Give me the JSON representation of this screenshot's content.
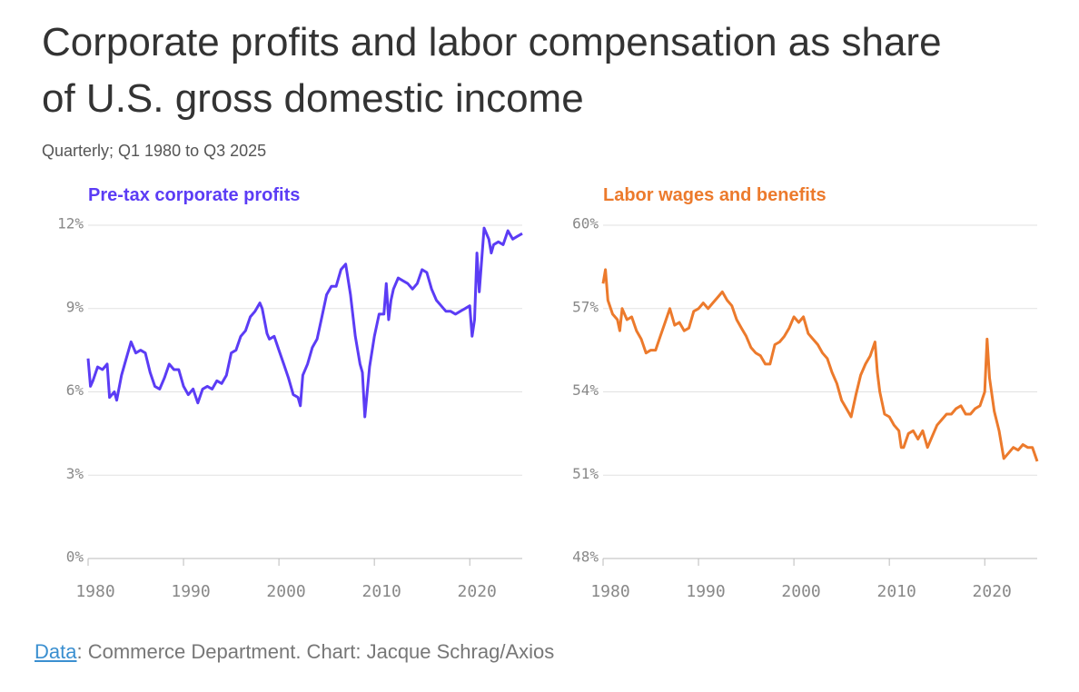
{
  "title": "Corporate profits and labor compensation as share of U.S. gross domestic income",
  "subtitle": "Quarterly; Q1 1980 to Q3 2025",
  "source": {
    "link": "Data",
    "text": ": Commerce Department. Chart: Jacque Schrag/Axios"
  },
  "chart_data": [
    {
      "type": "line",
      "grid": true,
      "xlim": [
        1980,
        2025.5
      ],
      "xticks": [
        1980,
        1990,
        2000,
        2010,
        2020
      ],
      "ylim": [
        0,
        12
      ],
      "yticks": [
        {
          "value": 0,
          "label": "0%"
        },
        {
          "value": 3,
          "label": "3%"
        },
        {
          "value": 6,
          "label": "6%"
        },
        {
          "value": 9,
          "label": "9%"
        },
        {
          "value": 12,
          "label": "12%"
        }
      ],
      "x": [
        1980,
        1980.25,
        1980.5,
        1981,
        1981.5,
        1982,
        1982.25,
        1982.75,
        1983,
        1983.5,
        1984,
        1984.5,
        1985,
        1985.5,
        1986,
        1986.5,
        1987,
        1987.5,
        1988,
        1988.5,
        1989,
        1989.5,
        1990,
        1990.5,
        1991,
        1991.5,
        1992,
        1992.5,
        1993,
        1993.5,
        1994,
        1994.5,
        1995,
        1995.5,
        1996,
        1996.5,
        1997,
        1997.5,
        1998,
        1998.25,
        1998.75,
        1999,
        1999.5,
        2000,
        2000.5,
        2001,
        2001.5,
        2002,
        2002.25,
        2002.5,
        2003,
        2003.5,
        2004,
        2004.5,
        2005,
        2005.5,
        2006,
        2006.5,
        2007,
        2007.5,
        2008,
        2008.5,
        2008.75,
        2009,
        2009.5,
        2010,
        2010.5,
        2011,
        2011.25,
        2011.5,
        2011.75,
        2012,
        2012.5,
        2013,
        2013.5,
        2014,
        2014.5,
        2015,
        2015.5,
        2016,
        2016.5,
        2017,
        2017.5,
        2018,
        2018.5,
        2019,
        2019.5,
        2020,
        2020.25,
        2020.5,
        2020.75,
        2021,
        2021.5,
        2022,
        2022.25,
        2022.5,
        2023,
        2023.5,
        2024,
        2024.5,
        2025,
        2025.5
      ],
      "series": [
        {
          "name": "Pre-tax corporate profits",
          "color": "#5b3cf5",
          "values": [
            7.2,
            6.2,
            6.4,
            6.9,
            6.8,
            7.0,
            5.8,
            6.0,
            5.7,
            6.6,
            7.2,
            7.8,
            7.4,
            7.5,
            7.4,
            6.7,
            6.2,
            6.1,
            6.5,
            7.0,
            6.8,
            6.8,
            6.2,
            5.9,
            6.1,
            5.6,
            6.1,
            6.2,
            6.1,
            6.4,
            6.3,
            6.6,
            7.4,
            7.5,
            8.0,
            8.2,
            8.7,
            8.9,
            9.2,
            9.0,
            8.1,
            7.9,
            8.0,
            7.5,
            7.0,
            6.5,
            5.9,
            5.8,
            5.5,
            6.6,
            7.0,
            7.6,
            7.9,
            8.7,
            9.5,
            9.8,
            9.8,
            10.4,
            10.6,
            9.5,
            8.0,
            7.0,
            6.7,
            5.1,
            6.9,
            8.0,
            8.8,
            8.8,
            9.9,
            8.6,
            9.3,
            9.7,
            10.1,
            10.0,
            9.9,
            9.7,
            9.9,
            10.4,
            10.3,
            9.7,
            9.3,
            9.1,
            8.9,
            8.9,
            8.8,
            8.9,
            9.0,
            9.1,
            8.0,
            8.6,
            11.0,
            9.6,
            11.9,
            11.5,
            11.0,
            11.3,
            11.4,
            11.3,
            11.8,
            11.5,
            11.6,
            11.7
          ]
        }
      ]
    },
    {
      "type": "line",
      "grid": true,
      "xlim": [
        1980,
        2025.5
      ],
      "xticks": [
        1980,
        1990,
        2000,
        2010,
        2020
      ],
      "ylim": [
        48,
        60
      ],
      "yticks": [
        {
          "value": 48,
          "label": "48%"
        },
        {
          "value": 51,
          "label": "51%"
        },
        {
          "value": 54,
          "label": "54%"
        },
        {
          "value": 57,
          "label": "57%"
        },
        {
          "value": 60,
          "label": "60%"
        }
      ],
      "x": [
        1980,
        1980.25,
        1980.5,
        1981,
        1981.5,
        1981.75,
        1982,
        1982.5,
        1983,
        1983.5,
        1984,
        1984.5,
        1985,
        1985.5,
        1986,
        1986.5,
        1987,
        1987.5,
        1988,
        1988.5,
        1989,
        1989.5,
        1990,
        1990.5,
        1991,
        1991.5,
        1992,
        1992.5,
        1993,
        1993.5,
        1994,
        1994.5,
        1995,
        1995.5,
        1996,
        1996.5,
        1997,
        1997.5,
        1998,
        1998.5,
        1999,
        1999.5,
        2000,
        2000.5,
        2001,
        2001.5,
        2002,
        2002.5,
        2003,
        2003.5,
        2004,
        2004.5,
        2005,
        2005.5,
        2006,
        2006.5,
        2007,
        2007.5,
        2008,
        2008.5,
        2008.75,
        2009,
        2009.5,
        2010,
        2010.5,
        2011,
        2011.25,
        2011.5,
        2012,
        2012.5,
        2013,
        2013.5,
        2014,
        2014.5,
        2015,
        2015.5,
        2016,
        2016.5,
        2017,
        2017.5,
        2018,
        2018.5,
        2019,
        2019.5,
        2020,
        2020.25,
        2020.5,
        2021,
        2021.5,
        2022,
        2022.5,
        2023,
        2023.5,
        2024,
        2024.5,
        2025,
        2025.5
      ],
      "series": [
        {
          "name": "Labor wages and benefits",
          "color": "#ec7a2c",
          "values": [
            57.9,
            58.4,
            57.3,
            56.8,
            56.6,
            56.2,
            57.0,
            56.6,
            56.7,
            56.2,
            55.9,
            55.4,
            55.5,
            55.5,
            56.0,
            56.5,
            57.0,
            56.4,
            56.5,
            56.2,
            56.3,
            56.9,
            57.0,
            57.2,
            57.0,
            57.2,
            57.4,
            57.6,
            57.3,
            57.1,
            56.6,
            56.3,
            56.0,
            55.6,
            55.4,
            55.3,
            55.0,
            55.0,
            55.7,
            55.8,
            56.0,
            56.3,
            56.7,
            56.5,
            56.7,
            56.1,
            55.9,
            55.7,
            55.4,
            55.2,
            54.7,
            54.3,
            53.7,
            53.4,
            53.1,
            53.9,
            54.6,
            55.0,
            55.3,
            55.8,
            54.7,
            54.0,
            53.2,
            53.1,
            52.8,
            52.6,
            52.0,
            52.0,
            52.5,
            52.6,
            52.3,
            52.6,
            52.0,
            52.4,
            52.8,
            53.0,
            53.2,
            53.2,
            53.4,
            53.5,
            53.2,
            53.2,
            53.4,
            53.5,
            54.0,
            55.9,
            54.5,
            53.3,
            52.6,
            51.6,
            51.8,
            52.0,
            51.9,
            52.1,
            52.0,
            52.0,
            51.5
          ]
        }
      ]
    }
  ]
}
